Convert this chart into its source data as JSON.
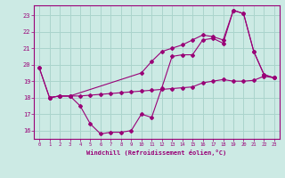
{
  "xlabel": "Windchill (Refroidissement éolien,°C)",
  "bg_color": "#cceae4",
  "grid_color": "#aad4cc",
  "line_color": "#990077",
  "xlim": [
    -0.5,
    23.5
  ],
  "ylim": [
    15.5,
    23.6
  ],
  "yticks": [
    16,
    17,
    18,
    19,
    20,
    21,
    22,
    23
  ],
  "xticks": [
    0,
    1,
    2,
    3,
    4,
    5,
    6,
    7,
    8,
    9,
    10,
    11,
    12,
    13,
    14,
    15,
    16,
    17,
    18,
    19,
    20,
    21,
    22,
    23
  ],
  "line1_x": [
    0,
    1,
    2,
    3,
    4,
    5,
    6,
    7,
    8,
    9,
    10,
    11,
    12,
    13,
    14,
    15,
    16,
    17,
    18,
    19,
    20,
    21,
    22,
    23
  ],
  "line1_y": [
    19.8,
    18.0,
    18.1,
    18.1,
    17.5,
    16.4,
    15.8,
    15.9,
    15.9,
    16.0,
    17.0,
    16.8,
    18.6,
    20.5,
    20.6,
    20.6,
    21.5,
    21.6,
    21.3,
    23.3,
    23.1,
    20.8,
    19.4,
    19.2
  ],
  "line2_x": [
    1,
    2,
    3,
    4,
    5,
    6,
    7,
    8,
    9,
    10,
    11,
    12,
    13,
    14,
    15,
    16,
    17,
    18,
    19,
    20,
    21,
    22,
    23
  ],
  "line2_y": [
    18.0,
    18.1,
    18.1,
    18.1,
    18.15,
    18.2,
    18.25,
    18.3,
    18.35,
    18.4,
    18.45,
    18.5,
    18.55,
    18.6,
    18.65,
    18.9,
    19.0,
    19.1,
    19.0,
    19.0,
    19.05,
    19.3,
    19.2
  ],
  "line3_x": [
    0,
    1,
    2,
    3,
    10,
    11,
    12,
    13,
    14,
    15,
    16,
    17,
    18,
    19,
    20,
    21,
    22,
    23
  ],
  "line3_y": [
    19.8,
    18.0,
    18.1,
    18.1,
    19.5,
    20.2,
    20.8,
    21.0,
    21.2,
    21.5,
    21.8,
    21.7,
    21.5,
    23.3,
    23.1,
    20.8,
    19.4,
    19.2
  ]
}
